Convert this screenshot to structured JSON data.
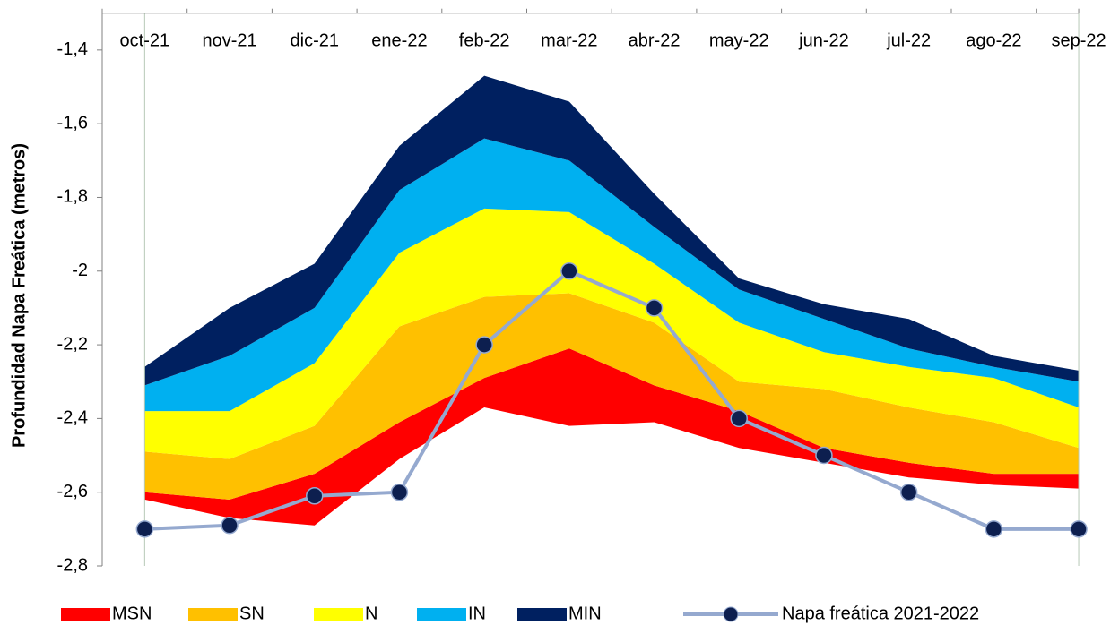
{
  "chart_data": {
    "type": "band-area",
    "y_label": "Profundidad Napa Freática (metros)",
    "categories": [
      "oct-21",
      "nov-21",
      "dic-21",
      "ene-22",
      "feb-22",
      "mar-22",
      "abr-22",
      "may-22",
      "jun-22",
      "jul-22",
      "ago-22",
      "sep-22"
    ],
    "base": [
      -2.62,
      -2.67,
      -2.69,
      -2.51,
      -2.37,
      -2.42,
      -2.41,
      -2.48,
      -2.52,
      -2.56,
      -2.58,
      -2.59
    ],
    "series": [
      {
        "name": "MSN",
        "color": "#ff0000",
        "values": [
          -2.6,
          -2.62,
          -2.55,
          -2.41,
          -2.29,
          -2.21,
          -2.31,
          -2.38,
          -2.48,
          -2.52,
          -2.55,
          -2.55
        ]
      },
      {
        "name": "SN",
        "color": "#ffc000",
        "values": [
          -2.49,
          -2.51,
          -2.42,
          -2.15,
          -2.07,
          -2.06,
          -2.14,
          -2.3,
          -2.32,
          -2.37,
          -2.41,
          -2.48
        ]
      },
      {
        "name": "N",
        "color": "#ffff00",
        "values": [
          -2.38,
          -2.38,
          -2.25,
          -1.95,
          -1.83,
          -1.84,
          -1.98,
          -2.14,
          -2.22,
          -2.26,
          -2.29,
          -2.37
        ]
      },
      {
        "name": "IN",
        "color": "#00b0f0",
        "values": [
          -2.31,
          -2.23,
          -2.1,
          -1.78,
          -1.64,
          -1.7,
          -1.88,
          -2.05,
          -2.13,
          -2.21,
          -2.26,
          -2.3
        ]
      },
      {
        "name": "MIN",
        "color": "#002060",
        "values": [
          -2.26,
          -2.1,
          -1.98,
          -1.66,
          -1.47,
          -1.54,
          -1.79,
          -2.02,
          -2.09,
          -2.13,
          -2.23,
          -2.27
        ]
      }
    ],
    "line_series": {
      "name": "Napa freática 2021-2022",
      "color": "#95a9cf",
      "marker_color": "#0d1f4f",
      "values": [
        -2.7,
        -2.69,
        -2.61,
        -2.6,
        -2.2,
        -2.0,
        -2.1,
        -2.4,
        -2.5,
        -2.6,
        -2.7,
        -2.7
      ]
    },
    "ylim": [
      -2.8,
      -1.3
    ],
    "yticks": [
      {
        "value": -2.8,
        "label": "-2,8"
      },
      {
        "value": -2.6,
        "label": "-2,6"
      },
      {
        "value": -2.4,
        "label": "-2,4"
      },
      {
        "value": -2.2,
        "label": "-2,2"
      },
      -2,
      {
        "value": -1.8,
        "label": "-1,8"
      },
      {
        "value": -1.6,
        "label": "-1,6"
      },
      {
        "value": -1.4,
        "label": "-1,4"
      }
    ],
    "grid": false,
    "x_axis_position": "top",
    "legend_position": "bottom"
  }
}
